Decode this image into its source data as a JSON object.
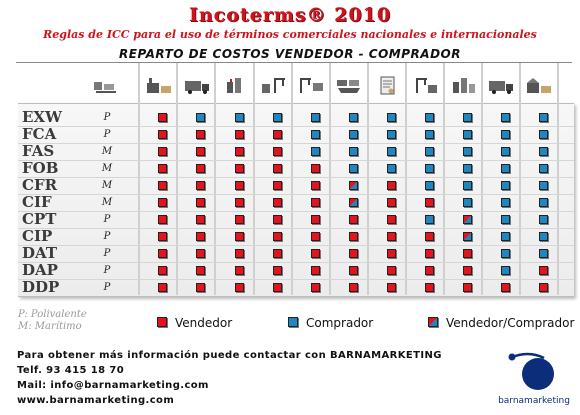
{
  "header": {
    "title": "Incoterms® 2010",
    "subtitle": "Reglas de ICC para el uso de términos comerciales nacionales e internacionales",
    "heading": "REPARTO DE COSTOS VENDEDOR - COMPRADOR"
  },
  "icons": [
    "packing-icon",
    "factory-loading-icon",
    "truck-transport-icon",
    "export-customs-icon",
    "port-loading-icon",
    "terminal-handling-icon",
    "freight-icon",
    "insurance-document-icon",
    "port-unloading-icon",
    "import-customs-icon",
    "truck-delivery-icon",
    "destination-warehouse-icon"
  ],
  "colors": {
    "vendedor": "#e8121c",
    "comprador": "#1f86c4",
    "title": "#d0121b"
  },
  "terms": [
    {
      "code": "EXW",
      "mode": "P",
      "cells": [
        "v",
        "c",
        "c",
        "c",
        "c",
        "c",
        "c",
        "c",
        "c",
        "c",
        "c",
        "c"
      ]
    },
    {
      "code": "FCA",
      "mode": "P",
      "cells": [
        "v",
        "v",
        "v",
        "v",
        "c",
        "c",
        "c",
        "c",
        "c",
        "c",
        "c",
        "c"
      ]
    },
    {
      "code": "FAS",
      "mode": "M",
      "cells": [
        "v",
        "v",
        "v",
        "v",
        "c",
        "c",
        "c",
        "c",
        "c",
        "c",
        "c",
        "c"
      ]
    },
    {
      "code": "FOB",
      "mode": "M",
      "cells": [
        "v",
        "v",
        "v",
        "v",
        "v",
        "c",
        "c",
        "c",
        "c",
        "c",
        "c",
        "c"
      ]
    },
    {
      "code": "CFR",
      "mode": "M",
      "cells": [
        "v",
        "v",
        "v",
        "v",
        "v",
        "vc",
        "v",
        "c",
        "c",
        "c",
        "c",
        "c"
      ]
    },
    {
      "code": "CIF",
      "mode": "M",
      "cells": [
        "v",
        "v",
        "v",
        "v",
        "v",
        "vc",
        "v",
        "v",
        "c",
        "c",
        "c",
        "c"
      ]
    },
    {
      "code": "CPT",
      "mode": "P",
      "cells": [
        "v",
        "v",
        "v",
        "v",
        "v",
        "v",
        "v",
        "c",
        "vc",
        "c",
        "c",
        "c"
      ]
    },
    {
      "code": "CIP",
      "mode": "P",
      "cells": [
        "v",
        "v",
        "v",
        "v",
        "v",
        "v",
        "v",
        "v",
        "vc",
        "c",
        "c",
        "c"
      ]
    },
    {
      "code": "DAT",
      "mode": "P",
      "cells": [
        "v",
        "v",
        "v",
        "v",
        "v",
        "v",
        "v",
        "v",
        "v",
        "c",
        "c",
        "c"
      ]
    },
    {
      "code": "DAP",
      "mode": "P",
      "cells": [
        "v",
        "v",
        "v",
        "v",
        "v",
        "v",
        "v",
        "v",
        "v",
        "c",
        "v",
        "c"
      ]
    },
    {
      "code": "DDP",
      "mode": "P",
      "cells": [
        "v",
        "v",
        "v",
        "v",
        "v",
        "v",
        "v",
        "v",
        "v",
        "v",
        "v",
        "c"
      ]
    }
  ],
  "legend": {
    "mode_p": "P: Polivalente",
    "mode_m": "M: Marítimo",
    "vendedor": "Vendedor",
    "comprador": "Comprador",
    "vendedor_comprador": "Vendedor/Comprador"
  },
  "contact": {
    "line1": "Para obtener más información puede contactar con BARNAMARKETING",
    "line2": "Telf. 93 415 18 70",
    "line3": "Mail: info@barnamarketing.com",
    "line4": "www.barnamarketing.com"
  },
  "logo": {
    "text": "barnamarketing"
  }
}
